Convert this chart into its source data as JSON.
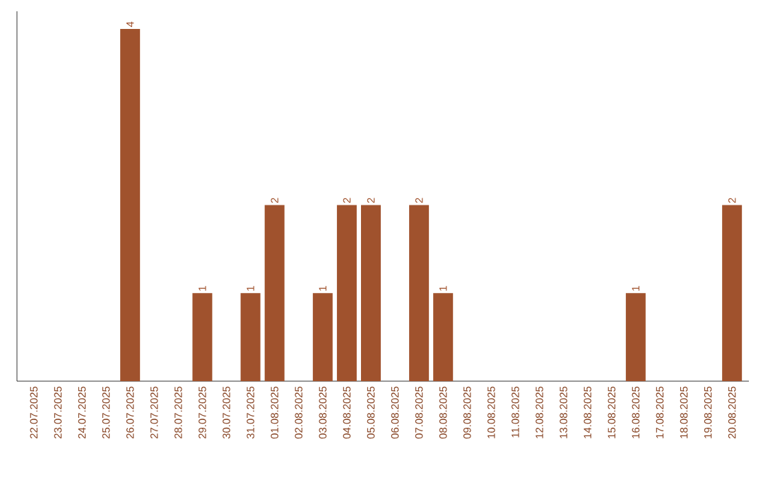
{
  "chart_data": {
    "type": "bar",
    "categories": [
      "22.07.2025",
      "23.07.2025",
      "24.07.2025",
      "25.07.2025",
      "26.07.2025",
      "27.07.2025",
      "28.07.2025",
      "29.07.2025",
      "30.07.2025",
      "31.07.2025",
      "01.08.2025",
      "02.08.2025",
      "03.08.2025",
      "04.08.2025",
      "05.08.2025",
      "06.08.2025",
      "07.08.2025",
      "08.08.2025",
      "09.08.2025",
      "10.08.2025",
      "11.08.2025",
      "12.08.2025",
      "13.08.2025",
      "14.08.2025",
      "15.08.2025",
      "16.08.2025",
      "17.08.2025",
      "18.08.2025",
      "19.08.2025",
      "20.08.2025"
    ],
    "values": [
      0,
      0,
      0,
      0,
      4,
      0,
      0,
      1,
      0,
      1,
      2,
      0,
      1,
      2,
      2,
      0,
      2,
      1,
      0,
      0,
      0,
      0,
      0,
      0,
      0,
      1,
      0,
      0,
      0,
      2
    ],
    "value_labels": [
      null,
      null,
      null,
      null,
      "4",
      null,
      null,
      "1",
      null,
      "1",
      "2",
      null,
      "1",
      "2",
      "2",
      null,
      "2",
      "1",
      null,
      null,
      null,
      null,
      null,
      null,
      null,
      "1",
      null,
      null,
      null,
      "2"
    ],
    "color": "#a0522d",
    "ylim": [
      0,
      4.2
    ],
    "tick_labels": "x"
  }
}
